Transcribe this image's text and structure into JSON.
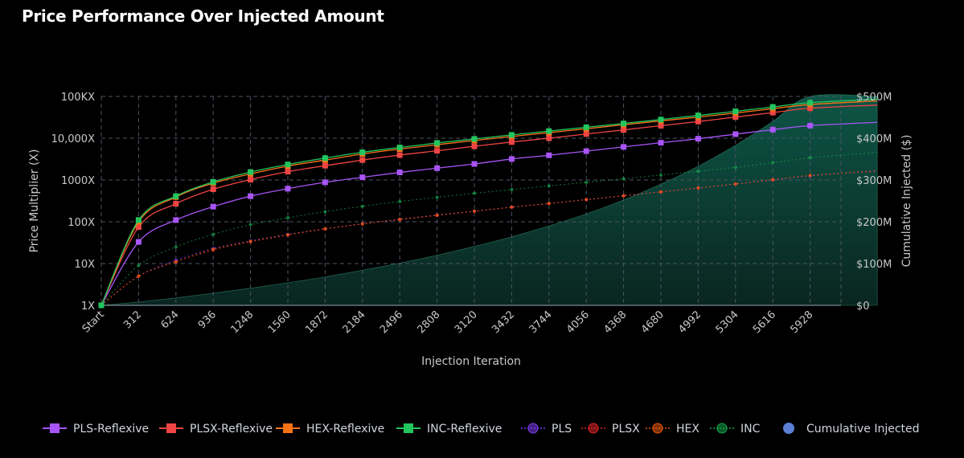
{
  "title": "Price Performance Over Injected Amount",
  "chart_data": {
    "type": "line",
    "title": "Price Performance Over Injected Amount",
    "xlabel": "Injection Iteration",
    "ylabel": "Price Multiplier (X)",
    "y2label": "Cumulative Injected ($)",
    "x_ticks": [
      "Start",
      "312",
      "624",
      "936",
      "1248",
      "1560",
      "1872",
      "2184",
      "2496",
      "2808",
      "3120",
      "3432",
      "3744",
      "4056",
      "4368",
      "4680",
      "4992",
      "5304",
      "5616",
      "5928"
    ],
    "y_scale": "log",
    "y_ticks": [
      {
        "value": 1,
        "label": "1X"
      },
      {
        "value": 10,
        "label": "10X"
      },
      {
        "value": 100,
        "label": "100X"
      },
      {
        "value": 1000,
        "label": "1000X"
      },
      {
        "value": 10000,
        "label": "10,000X"
      },
      {
        "value": 100000,
        "label": "100KX"
      }
    ],
    "ylim": [
      1,
      100000
    ],
    "y2_ticks": [
      {
        "value": 0,
        "label": "$0"
      },
      {
        "value": 100,
        "label": "$100M"
      },
      {
        "value": 200,
        "label": "$200M"
      },
      {
        "value": 300,
        "label": "$300M"
      },
      {
        "value": 400,
        "label": "$400M"
      },
      {
        "value": 500,
        "label": "$500M"
      }
    ],
    "y2lim": [
      0,
      500
    ],
    "y2_units": "$M",
    "x_max_index": 20.8,
    "series": [
      {
        "name": "PLS-Reflexive",
        "color": "#a855f7",
        "style": "reflexive",
        "values": [
          1,
          33,
          110,
          230,
          410,
          620,
          880,
          1160,
          1520,
          1920,
          2420,
          3180,
          3900,
          4900,
          6200,
          7800,
          9700,
          12500,
          16000,
          20000
        ],
        "end": {
          "x": 20.8,
          "y": 24000
        }
      },
      {
        "name": "PLSX-Reflexive",
        "color": "#ef4444",
        "style": "reflexive",
        "values": [
          1,
          75,
          270,
          600,
          1020,
          1580,
          2200,
          3000,
          3950,
          5000,
          6400,
          8100,
          10000,
          12600,
          15800,
          20000,
          25000,
          32000,
          41000,
          52000
        ],
        "end": {
          "x": 20.8,
          "y": 62000
        }
      },
      {
        "name": "HEX-Reflexive",
        "color": "#f97316",
        "style": "reflexive",
        "values": [
          1,
          100,
          390,
          840,
          1400,
          2150,
          3000,
          4200,
          5500,
          7000,
          8800,
          11000,
          13600,
          16800,
          21000,
          26000,
          32000,
          40000,
          51000,
          64000
        ],
        "end": {
          "x": 20.8,
          "y": 78000
        }
      },
      {
        "name": "INC-Reflexive",
        "color": "#22c55e",
        "style": "reflexive",
        "values": [
          1,
          110,
          410,
          900,
          1550,
          2350,
          3350,
          4600,
          6000,
          7700,
          9600,
          12000,
          14800,
          18300,
          22500,
          28000,
          35000,
          44000,
          56000,
          71000
        ],
        "end": {
          "x": 20.8,
          "y": 85000
        }
      },
      {
        "name": "PLS",
        "color": "#7c3aed",
        "style": "base",
        "values": [
          1,
          5,
          12,
          23,
          35,
          50,
          68,
          90,
          115,
          145,
          180,
          225,
          275,
          340,
          420,
          520,
          640,
          800,
          1000,
          1250
        ],
        "end": {
          "x": 20.8,
          "y": 1700
        }
      },
      {
        "name": "PLSX",
        "color": "#dc2626",
        "style": "base",
        "values": [
          1,
          5,
          11,
          21,
          33,
          48,
          67,
          88,
          112,
          142,
          178,
          222,
          272,
          338,
          418,
          518,
          640,
          800,
          1010,
          1280
        ],
        "end": {
          "x": 20.8,
          "y": 1600
        }
      },
      {
        "name": "HEX",
        "color": "#ea580c",
        "style": "base",
        "values": [
          1,
          5,
          11,
          22,
          34,
          49,
          68,
          89,
          114,
          144,
          180,
          224,
          275,
          340,
          420,
          520,
          645,
          805,
          1015,
          1285
        ],
        "end": {
          "x": 20.8,
          "y": 1650
        }
      },
      {
        "name": "INC",
        "color": "#16a34a",
        "style": "base",
        "values": [
          1,
          9,
          25,
          50,
          85,
          125,
          175,
          235,
          305,
          385,
          480,
          590,
          720,
          880,
          1070,
          1320,
          1620,
          2000,
          2600,
          3400
        ],
        "end": {
          "x": 20.8,
          "y": 4600
        }
      },
      {
        "name": "Cumulative Injected",
        "color": "#5b7fd6",
        "style": "area",
        "axis": "y2",
        "values": [
          0,
          8,
          18,
          29,
          41,
          54,
          68,
          84,
          101,
          120,
          141,
          164,
          190,
          219,
          252,
          290,
          333,
          383,
          440,
          500
        ],
        "end": {
          "x": 20.8,
          "y": 500
        }
      }
    ]
  }
}
